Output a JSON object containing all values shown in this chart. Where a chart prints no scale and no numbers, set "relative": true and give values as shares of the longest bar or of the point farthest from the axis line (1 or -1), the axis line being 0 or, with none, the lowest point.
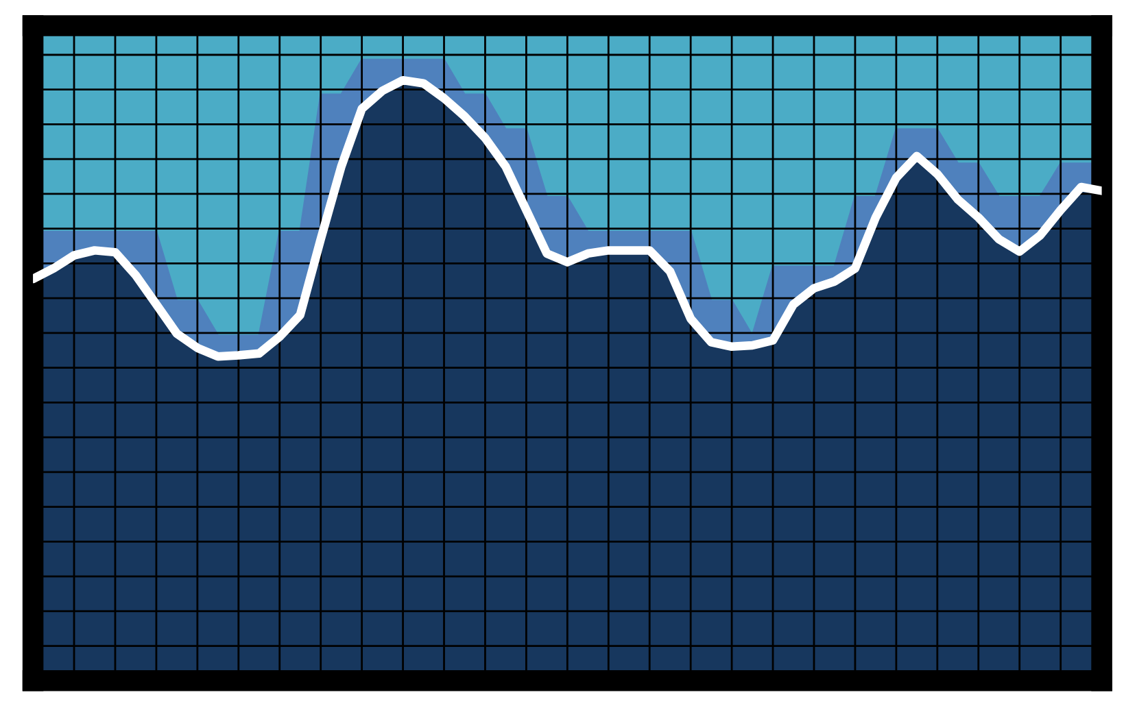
{
  "chart_data": {
    "type": "area",
    "relative": true,
    "grid": true,
    "categories": [
      null,
      null,
      null,
      null,
      null,
      null,
      null,
      null,
      null,
      null,
      null,
      null,
      null,
      null,
      null,
      null,
      null,
      null,
      null,
      null,
      null,
      null,
      null,
      null,
      null,
      null,
      null,
      null,
      null,
      null,
      null,
      null,
      null,
      null,
      null,
      null,
      null,
      null,
      null,
      null,
      null,
      null,
      null,
      null,
      null,
      null,
      null,
      null,
      null,
      null,
      null,
      null,
      null
    ],
    "series": [
      {
        "color": "#4f81bd",
        "values": [
          0.723,
          0.723,
          0.723,
          0.723,
          0.723,
          0.723,
          0.723,
          0.612,
          0.612,
          0.556,
          0.556,
          0.556,
          0.723,
          0.723,
          0.944,
          0.944,
          1.0,
          1.0,
          1.0,
          1.0,
          1.0,
          0.944,
          0.944,
          0.888,
          0.888,
          0.779,
          0.779,
          0.723,
          0.723,
          0.723,
          0.723,
          0.723,
          0.723,
          0.612,
          0.612,
          0.556,
          0.667,
          0.667,
          0.667,
          0.667,
          0.779,
          0.779,
          0.888,
          0.888,
          0.888,
          0.833,
          0.833,
          0.779,
          0.779,
          0.779,
          0.833,
          0.833,
          0.833
        ]
      },
      {
        "color": "#17375e",
        "values": [
          0.647,
          0.664,
          0.685,
          0.693,
          0.69,
          0.653,
          0.606,
          0.559,
          0.536,
          0.522,
          0.524,
          0.527,
          0.554,
          0.589,
          0.711,
          0.828,
          0.921,
          0.95,
          0.967,
          0.962,
          0.938,
          0.909,
          0.874,
          0.828,
          0.758,
          0.688,
          0.674,
          0.688,
          0.693,
          0.693,
          0.693,
          0.659,
          0.583,
          0.545,
          0.538,
          0.54,
          0.548,
          0.606,
          0.632,
          0.643,
          0.664,
          0.746,
          0.81,
          0.845,
          0.816,
          0.775,
          0.746,
          0.711,
          0.691,
          0.717,
          0.758,
          0.795,
          0.789
        ]
      }
    ]
  }
}
